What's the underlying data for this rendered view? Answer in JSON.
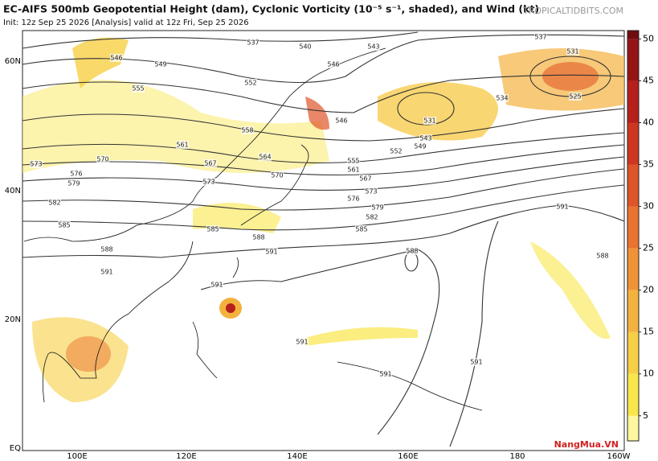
{
  "header": {
    "title": "EC-AIFS 500mb Geopotential Height (dam), Cyclonic Vorticity (10⁻⁵ s⁻¹, shaded), and Wind (kt)",
    "subtitle": "Init: 12z Sep 25 2026   [Analysis]   valid at 12z Fri, Sep 25 2026",
    "site": "TROPICALTIDBITS.COM"
  },
  "map": {
    "lat_labels": [
      "60N",
      "40N",
      "20N",
      "EQ"
    ],
    "lon_labels": [
      "100E",
      "120E",
      "140E",
      "160E",
      "180",
      "160W"
    ],
    "contour_labels": [
      537,
      540,
      543,
      546,
      549,
      546,
      552,
      555,
      558,
      561,
      567,
      564,
      570,
      573,
      576,
      579,
      570,
      573,
      582,
      585,
      588,
      591,
      585,
      588,
      591,
      591,
      591,
      591,
      591,
      591,
      588,
      588,
      531,
      537,
      531,
      534,
      525,
      546,
      552,
      555,
      561,
      567,
      573,
      576,
      579,
      582,
      585,
      549,
      543
    ]
  },
  "colorbar": {
    "lim": [
      2,
      51
    ],
    "ticks": [
      5,
      10,
      15,
      20,
      25,
      30,
      35,
      40,
      45,
      50
    ],
    "colors": [
      "#fff6a0",
      "#f9e64a",
      "#f6cf45",
      "#f3b23e",
      "#f09337",
      "#ea7330",
      "#df5429",
      "#cf3622",
      "#b71f1c",
      "#961416",
      "#700b0e"
    ]
  },
  "watermark": "NangMua.VN"
}
